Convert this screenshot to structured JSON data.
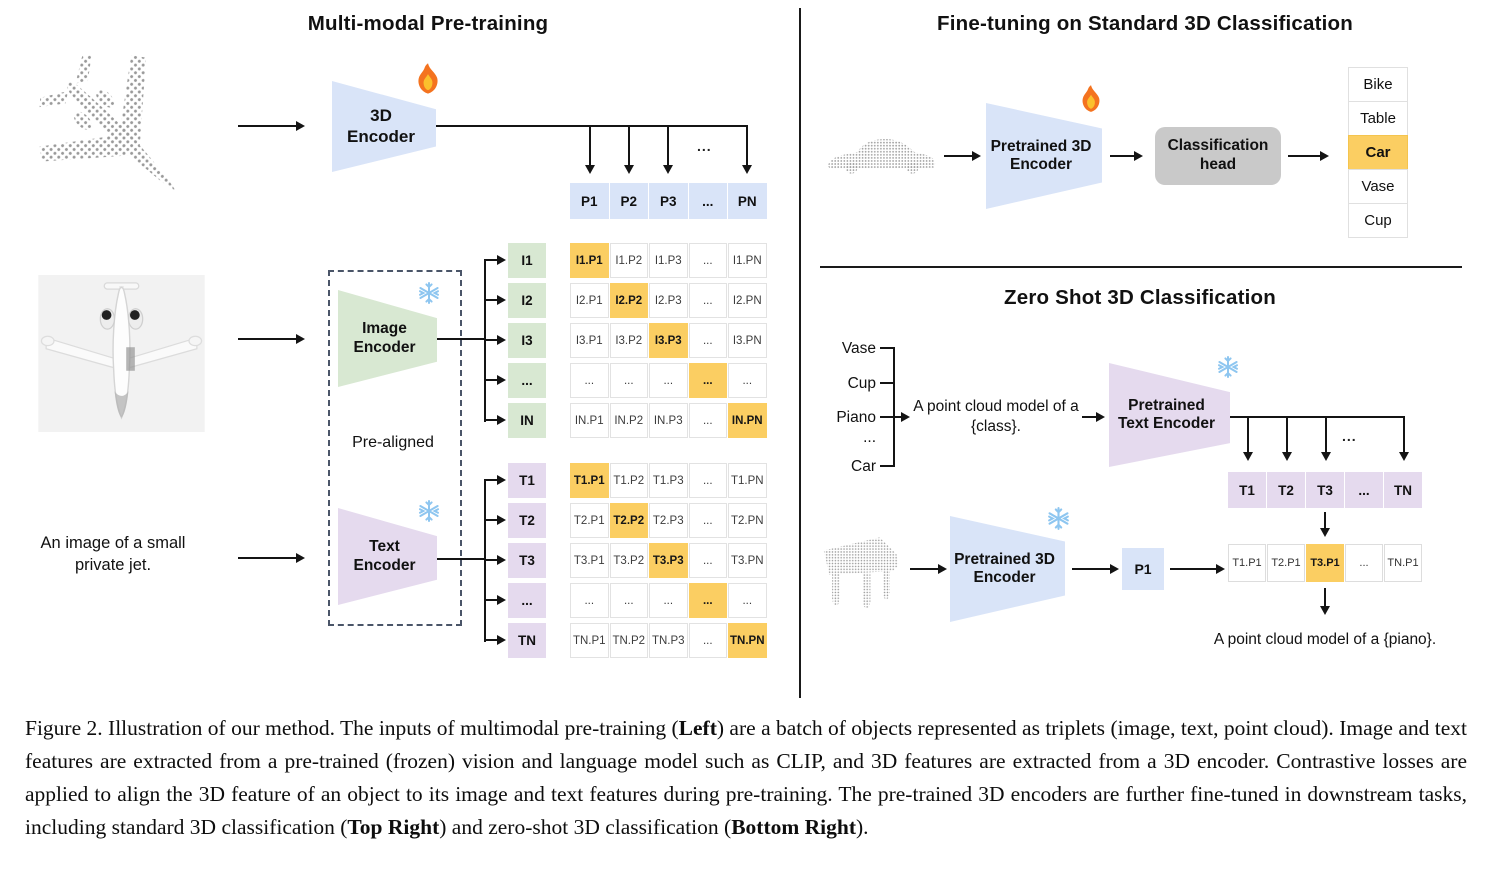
{
  "figure": {
    "pretraining": {
      "title": "Multi-modal Pre-training",
      "encoder_3d_label": "3D Encoder",
      "pre_aligned_label": "Pre-aligned",
      "image_encoder_label": "Image Encoder",
      "text_encoder_label": "Text Encoder",
      "text_input": "An image of a small private jet.",
      "ellipsis": "...",
      "p_row": [
        {
          "t": "P1"
        },
        {
          "t": "P2"
        },
        {
          "t": "P3"
        },
        {
          "t": "..."
        },
        {
          "t": "PN"
        }
      ],
      "i_labels": [
        {
          "t": "I1"
        },
        {
          "t": "I2"
        },
        {
          "t": "I3"
        },
        {
          "t": "..."
        },
        {
          "t": "IN"
        }
      ],
      "i_matrix": [
        [
          {
            "t": "I1.P1",
            "hl": true
          },
          {
            "t": "I1.P2"
          },
          {
            "t": "I1.P3"
          },
          {
            "t": "..."
          },
          {
            "t": "I1.PN"
          }
        ],
        [
          {
            "t": "I2.P1"
          },
          {
            "t": "I2.P2",
            "hl": true
          },
          {
            "t": "I2.P3"
          },
          {
            "t": "..."
          },
          {
            "t": "I2.PN"
          }
        ],
        [
          {
            "t": "I3.P1"
          },
          {
            "t": "I3.P2"
          },
          {
            "t": "I3.P3",
            "hl": true
          },
          {
            "t": "..."
          },
          {
            "t": "I3.PN"
          }
        ],
        [
          {
            "t": "..."
          },
          {
            "t": "..."
          },
          {
            "t": "..."
          },
          {
            "t": "...",
            "hl": true
          },
          {
            "t": "..."
          }
        ],
        [
          {
            "t": "IN.P1"
          },
          {
            "t": "IN.P2"
          },
          {
            "t": "IN.P3"
          },
          {
            "t": "..."
          },
          {
            "t": "IN.PN",
            "hl": true
          }
        ]
      ],
      "t_labels": [
        {
          "t": "T1"
        },
        {
          "t": "T2"
        },
        {
          "t": "T3"
        },
        {
          "t": "..."
        },
        {
          "t": "TN"
        }
      ],
      "t_matrix": [
        [
          {
            "t": "T1.P1",
            "hl": true
          },
          {
            "t": "T1.P2"
          },
          {
            "t": "T1.P3"
          },
          {
            "t": "..."
          },
          {
            "t": "T1.PN"
          }
        ],
        [
          {
            "t": "T2.P1"
          },
          {
            "t": "T2.P2",
            "hl": true
          },
          {
            "t": "T2.P3"
          },
          {
            "t": "..."
          },
          {
            "t": "T2.PN"
          }
        ],
        [
          {
            "t": "T3.P1"
          },
          {
            "t": "T3.P2"
          },
          {
            "t": "T3.P3",
            "hl": true
          },
          {
            "t": "..."
          },
          {
            "t": "T3.PN"
          }
        ],
        [
          {
            "t": "..."
          },
          {
            "t": "..."
          },
          {
            "t": "..."
          },
          {
            "t": "...",
            "hl": true
          },
          {
            "t": "..."
          }
        ],
        [
          {
            "t": "TN.P1"
          },
          {
            "t": "TN.P2"
          },
          {
            "t": "TN.P3"
          },
          {
            "t": "..."
          },
          {
            "t": "TN.PN",
            "hl": true
          }
        ]
      ]
    },
    "finetuning": {
      "title": "Fine-tuning on Standard 3D Classification",
      "encoder_label": "Pretrained 3D Encoder",
      "head_label": "Classification head",
      "classes": [
        {
          "t": "Bike"
        },
        {
          "t": "Table"
        },
        {
          "t": "Car",
          "hl": true
        },
        {
          "t": "Vase"
        },
        {
          "t": "Cup"
        }
      ]
    },
    "zeroshot": {
      "title": "Zero Shot 3D Classification",
      "candidate_classes": [
        {
          "t": "Vase"
        },
        {
          "t": "Cup"
        },
        {
          "t": "Piano"
        },
        {
          "t": "..."
        },
        {
          "t": "Car"
        }
      ],
      "prompt": "A point cloud model of a {class}.",
      "text_encoder_label": "Pretrained Text Encoder",
      "encoder_label": "Pretrained 3D Encoder",
      "p1_label": "P1",
      "ellipsis": "...",
      "t_row": [
        {
          "t": "T1"
        },
        {
          "t": "T2"
        },
        {
          "t": "T3"
        },
        {
          "t": "..."
        },
        {
          "t": "TN"
        }
      ],
      "tp_row": [
        {
          "t": "T1.P1"
        },
        {
          "t": "T2.P1"
        },
        {
          "t": "T3.P1",
          "hl": true
        },
        {
          "t": "..."
        },
        {
          "t": "TN.P1"
        }
      ],
      "result": "A point cloud model of a {piano}."
    },
    "caption": {
      "segments": [
        {
          "t": "Figure 2. Illustration of our method. The inputs of multimodal pre-training ("
        },
        {
          "t": "Left",
          "b": true
        },
        {
          "t": ") are a batch of objects represented as triplets (image, text, point cloud). Image and text features are extracted from a pre-trained (frozen) vision and language model such as CLIP, and 3D features are extracted from a 3D encoder. Contrastive losses are applied to align the 3D feature of an object to its image and text features during pre-training. The pre-trained 3D encoders are further fine-tuned in downstream tasks, including standard 3D classification ("
        },
        {
          "t": "Top Right",
          "b": true
        },
        {
          "t": ") and zero-shot 3D classification ("
        },
        {
          "t": "Bottom Right",
          "b": true
        },
        {
          "t": ")."
        }
      ]
    },
    "icons": {
      "trainable": "fire-icon",
      "frozen": "snowflake-icon"
    },
    "colors": {
      "encoder_blue": "#d9e4f8",
      "encoder_green": "#d8e8d2",
      "encoder_purple": "#e5daee",
      "highlight_orange": "#fbce62",
      "head_gray": "#c9c9c9",
      "point_cloud_gray": "#9a9a9a"
    }
  }
}
